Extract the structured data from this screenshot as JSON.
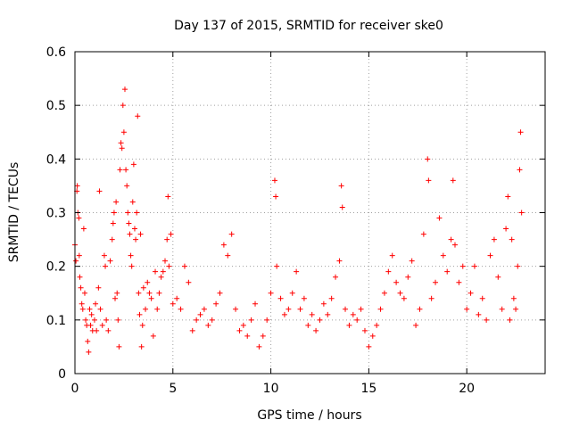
{
  "chart_data": {
    "type": "scatter",
    "title": "Day 137 of 2015, SRMTID for receiver ske0",
    "xlabel": "GPS time / hours",
    "ylabel": "SRMTID / TECUs",
    "xlim": [
      0,
      24
    ],
    "ylim": [
      0,
      0.6
    ],
    "xticks": [
      0,
      5,
      10,
      15,
      20
    ],
    "yticks": [
      0,
      0.1,
      0.2,
      0.3,
      0.4,
      0.5,
      0.6
    ],
    "grid": true,
    "marker": "+",
    "colors": {
      "points": "#ff0000",
      "grid": "#a0a0a0",
      "axes": "#000000"
    },
    "series": [
      {
        "name": "SRMTID",
        "points": [
          [
            0.0,
            0.24
          ],
          [
            0.05,
            0.21
          ],
          [
            0.1,
            0.34
          ],
          [
            0.12,
            0.35
          ],
          [
            0.15,
            0.3
          ],
          [
            0.2,
            0.29
          ],
          [
            0.22,
            0.22
          ],
          [
            0.25,
            0.18
          ],
          [
            0.3,
            0.16
          ],
          [
            0.35,
            0.13
          ],
          [
            0.4,
            0.12
          ],
          [
            0.45,
            0.27
          ],
          [
            0.5,
            0.15
          ],
          [
            0.55,
            0.1
          ],
          [
            0.6,
            0.09
          ],
          [
            0.65,
            0.06
          ],
          [
            0.7,
            0.04
          ],
          [
            0.75,
            0.12
          ],
          [
            0.8,
            0.09
          ],
          [
            0.85,
            0.11
          ],
          [
            0.9,
            0.08
          ],
          [
            1.0,
            0.1
          ],
          [
            1.05,
            0.13
          ],
          [
            1.1,
            0.08
          ],
          [
            1.2,
            0.16
          ],
          [
            1.25,
            0.34
          ],
          [
            1.3,
            0.12
          ],
          [
            1.4,
            0.09
          ],
          [
            1.5,
            0.22
          ],
          [
            1.55,
            0.2
          ],
          [
            1.6,
            0.1
          ],
          [
            1.7,
            0.08
          ],
          [
            1.8,
            0.21
          ],
          [
            1.9,
            0.25
          ],
          [
            1.95,
            0.28
          ],
          [
            2.0,
            0.3
          ],
          [
            2.05,
            0.14
          ],
          [
            2.1,
            0.32
          ],
          [
            2.15,
            0.15
          ],
          [
            2.2,
            0.1
          ],
          [
            2.25,
            0.05
          ],
          [
            2.3,
            0.38
          ],
          [
            2.35,
            0.43
          ],
          [
            2.4,
            0.42
          ],
          [
            2.45,
            0.5
          ],
          [
            2.5,
            0.45
          ],
          [
            2.55,
            0.53
          ],
          [
            2.6,
            0.38
          ],
          [
            2.65,
            0.35
          ],
          [
            2.7,
            0.3
          ],
          [
            2.75,
            0.28
          ],
          [
            2.8,
            0.26
          ],
          [
            2.85,
            0.22
          ],
          [
            2.9,
            0.2
          ],
          [
            2.95,
            0.32
          ],
          [
            3.0,
            0.39
          ],
          [
            3.05,
            0.27
          ],
          [
            3.1,
            0.25
          ],
          [
            3.15,
            0.3
          ],
          [
            3.2,
            0.48
          ],
          [
            3.25,
            0.15
          ],
          [
            3.3,
            0.11
          ],
          [
            3.35,
            0.26
          ],
          [
            3.4,
            0.05
          ],
          [
            3.45,
            0.09
          ],
          [
            3.5,
            0.16
          ],
          [
            3.6,
            0.12
          ],
          [
            3.7,
            0.17
          ],
          [
            3.8,
            0.15
          ],
          [
            3.9,
            0.14
          ],
          [
            4.0,
            0.07
          ],
          [
            4.1,
            0.19
          ],
          [
            4.2,
            0.12
          ],
          [
            4.3,
            0.15
          ],
          [
            4.4,
            0.18
          ],
          [
            4.5,
            0.19
          ],
          [
            4.6,
            0.21
          ],
          [
            4.7,
            0.25
          ],
          [
            4.75,
            0.33
          ],
          [
            4.8,
            0.2
          ],
          [
            4.9,
            0.26
          ],
          [
            5.0,
            0.13
          ],
          [
            5.2,
            0.14
          ],
          [
            5.4,
            0.12
          ],
          [
            5.6,
            0.2
          ],
          [
            5.8,
            0.17
          ],
          [
            6.0,
            0.08
          ],
          [
            6.2,
            0.1
          ],
          [
            6.4,
            0.11
          ],
          [
            6.6,
            0.12
          ],
          [
            6.8,
            0.09
          ],
          [
            7.0,
            0.1
          ],
          [
            7.2,
            0.13
          ],
          [
            7.4,
            0.15
          ],
          [
            7.6,
            0.24
          ],
          [
            7.8,
            0.22
          ],
          [
            8.0,
            0.26
          ],
          [
            8.2,
            0.12
          ],
          [
            8.4,
            0.08
          ],
          [
            8.6,
            0.09
          ],
          [
            8.8,
            0.07
          ],
          [
            9.0,
            0.1
          ],
          [
            9.2,
            0.13
          ],
          [
            9.4,
            0.05
          ],
          [
            9.6,
            0.07
          ],
          [
            9.8,
            0.1
          ],
          [
            10.0,
            0.15
          ],
          [
            10.2,
            0.36
          ],
          [
            10.25,
            0.33
          ],
          [
            10.3,
            0.2
          ],
          [
            10.5,
            0.14
          ],
          [
            10.7,
            0.11
          ],
          [
            10.9,
            0.12
          ],
          [
            11.1,
            0.15
          ],
          [
            11.3,
            0.19
          ],
          [
            11.5,
            0.12
          ],
          [
            11.7,
            0.14
          ],
          [
            11.9,
            0.09
          ],
          [
            12.1,
            0.11
          ],
          [
            12.3,
            0.08
          ],
          [
            12.5,
            0.1
          ],
          [
            12.7,
            0.13
          ],
          [
            12.9,
            0.11
          ],
          [
            13.1,
            0.14
          ],
          [
            13.3,
            0.18
          ],
          [
            13.5,
            0.21
          ],
          [
            13.6,
            0.35
          ],
          [
            13.65,
            0.31
          ],
          [
            13.8,
            0.12
          ],
          [
            14.0,
            0.09
          ],
          [
            14.2,
            0.11
          ],
          [
            14.4,
            0.1
          ],
          [
            14.6,
            0.12
          ],
          [
            14.8,
            0.08
          ],
          [
            15.0,
            0.05
          ],
          [
            15.2,
            0.07
          ],
          [
            15.4,
            0.09
          ],
          [
            15.6,
            0.12
          ],
          [
            15.8,
            0.15
          ],
          [
            16.0,
            0.19
          ],
          [
            16.2,
            0.22
          ],
          [
            16.4,
            0.17
          ],
          [
            16.6,
            0.15
          ],
          [
            16.8,
            0.14
          ],
          [
            17.0,
            0.18
          ],
          [
            17.2,
            0.21
          ],
          [
            17.4,
            0.09
          ],
          [
            17.6,
            0.12
          ],
          [
            17.8,
            0.26
          ],
          [
            18.0,
            0.4
          ],
          [
            18.05,
            0.36
          ],
          [
            18.2,
            0.14
          ],
          [
            18.4,
            0.17
          ],
          [
            18.6,
            0.29
          ],
          [
            18.8,
            0.22
          ],
          [
            19.0,
            0.19
          ],
          [
            19.2,
            0.25
          ],
          [
            19.3,
            0.36
          ],
          [
            19.4,
            0.24
          ],
          [
            19.6,
            0.17
          ],
          [
            19.8,
            0.2
          ],
          [
            20.0,
            0.12
          ],
          [
            20.2,
            0.15
          ],
          [
            20.4,
            0.2
          ],
          [
            20.6,
            0.11
          ],
          [
            20.8,
            0.14
          ],
          [
            21.0,
            0.1
          ],
          [
            21.2,
            0.22
          ],
          [
            21.4,
            0.25
          ],
          [
            21.6,
            0.18
          ],
          [
            21.8,
            0.12
          ],
          [
            22.0,
            0.27
          ],
          [
            22.1,
            0.33
          ],
          [
            22.2,
            0.1
          ],
          [
            22.3,
            0.25
          ],
          [
            22.4,
            0.14
          ],
          [
            22.5,
            0.12
          ],
          [
            22.6,
            0.2
          ],
          [
            22.7,
            0.38
          ],
          [
            22.75,
            0.45
          ],
          [
            22.8,
            0.3
          ]
        ]
      }
    ]
  }
}
